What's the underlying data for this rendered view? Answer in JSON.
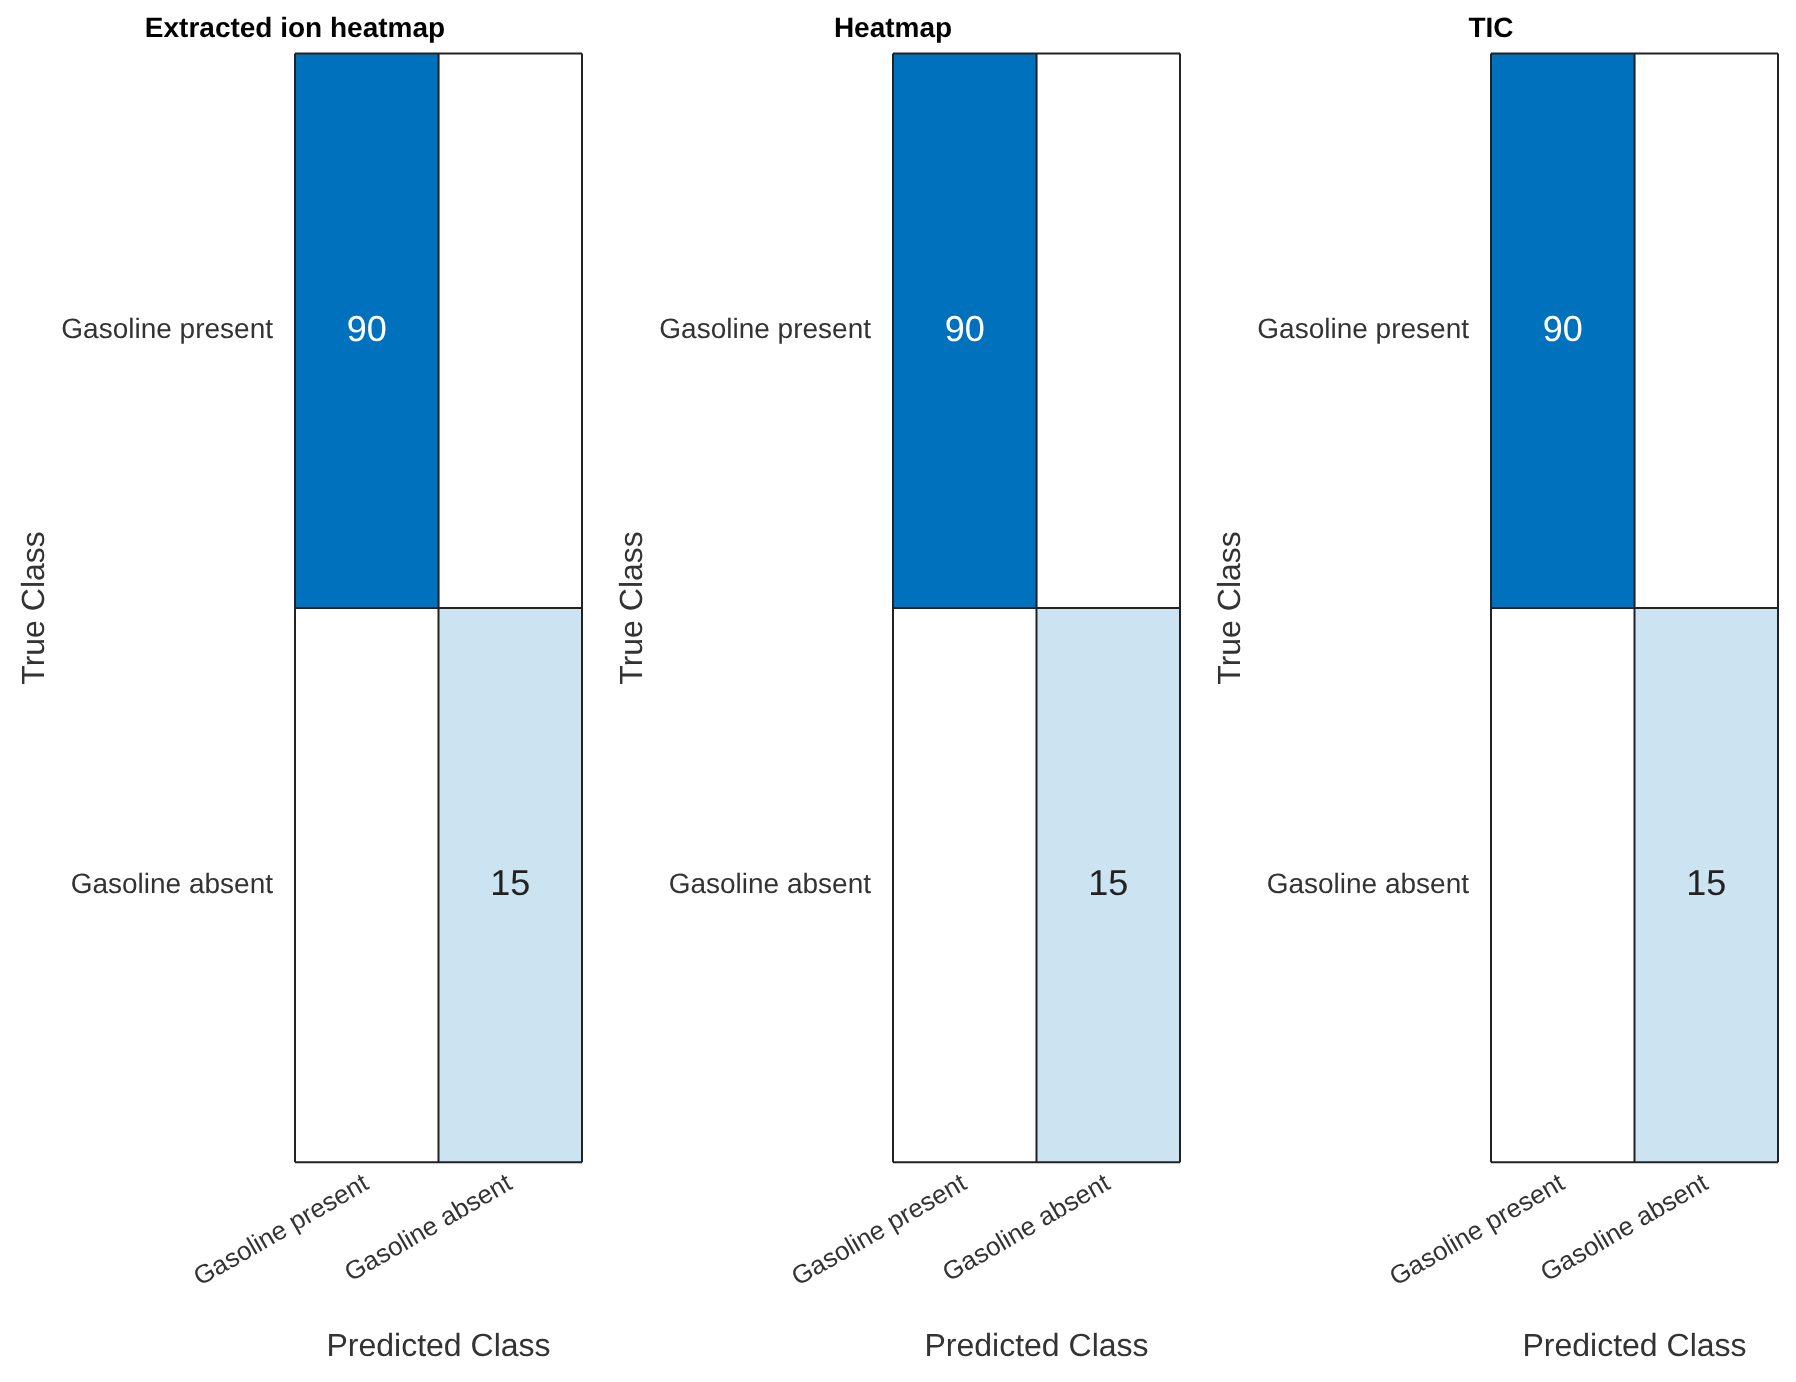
{
  "chart_data": [
    {
      "type": "heatmap",
      "title": "Extracted ion heatmap",
      "xlabel": "Predicted Class",
      "ylabel": "True Class",
      "categories": [
        "Gasoline present",
        "Gasoline absent"
      ],
      "y_categories": [
        "Gasoline present",
        "Gasoline absent"
      ],
      "cells": [
        [
          90,
          null
        ],
        [
          null,
          15
        ]
      ],
      "color": "#0072bd",
      "data_labels": true
    },
    {
      "type": "heatmap",
      "title": "Heatmap",
      "xlabel": "Predicted Class",
      "ylabel": "True Class",
      "categories": [
        "Gasoline present",
        "Gasoline absent"
      ],
      "y_categories": [
        "Gasoline present",
        "Gasoline absent"
      ],
      "cells": [
        [
          90,
          null
        ],
        [
          null,
          15
        ]
      ],
      "color": "#0072bd",
      "data_labels": true
    },
    {
      "type": "heatmap",
      "title": "TIC",
      "xlabel": "Predicted Class",
      "ylabel": "True Class",
      "categories": [
        "Gasoline present",
        "Gasoline absent"
      ],
      "y_categories": [
        "Gasoline present",
        "Gasoline absent"
      ],
      "cells": [
        [
          90,
          null
        ],
        [
          null,
          15
        ]
      ],
      "color": "#0072bd",
      "data_labels": true
    }
  ]
}
